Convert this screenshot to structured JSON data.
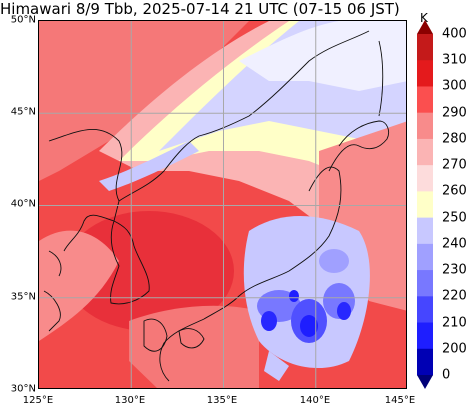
{
  "title": "Himawari 8/9 Tbb, 2025-07-14 21 UTC (07-15 06 JST)",
  "map": {
    "extent": {
      "lon": [
        125,
        145
      ],
      "lat": [
        30,
        50
      ]
    },
    "lat_ticks": [
      "50°N",
      "45°N",
      "40°N",
      "35°N",
      "30°N"
    ],
    "lon_ticks": [
      "125°E",
      "130°E",
      "135°E",
      "140°E",
      "145°E"
    ],
    "grid": true,
    "coastlines": true
  },
  "colorbar": {
    "unit": "K",
    "ticks": [
      "400",
      "310",
      "300",
      "290",
      "280",
      "270",
      "260",
      "250",
      "240",
      "230",
      "220",
      "210",
      "200",
      "0"
    ],
    "colors": [
      "#8b0000",
      "#c41a1a",
      "#e41a1c",
      "#fb4f4f",
      "#f88b8b",
      "#fbb4b4",
      "#fddcdc",
      "#ffffc8",
      "#c8c8ff",
      "#a0a0ff",
      "#7878ff",
      "#4646ff",
      "#1e1eff",
      "#0000b4",
      "#000078"
    ],
    "extend": "both"
  }
}
